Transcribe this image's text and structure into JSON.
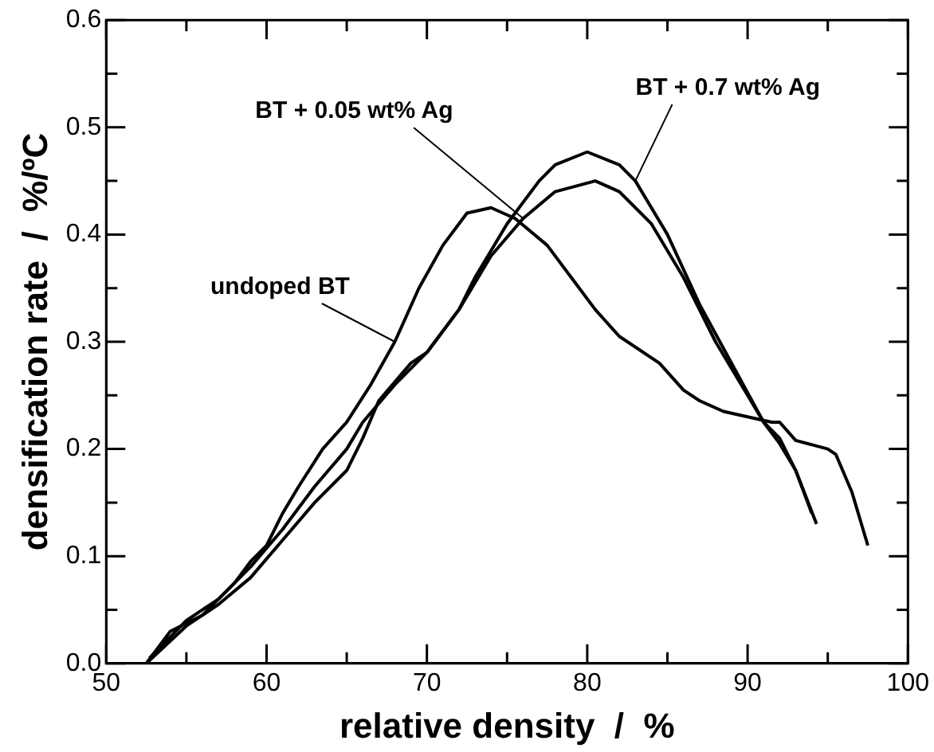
{
  "chart_data": {
    "type": "line",
    "xlabel": "relative density  /  %",
    "ylabel": "densification rate  /  %/ºC",
    "xlim": [
      50,
      100
    ],
    "ylim": [
      0,
      0.6
    ],
    "xticks": [
      50,
      {
        "value": 55,
        "label": null
      },
      60,
      {
        "value": 65,
        "label": null
      },
      70,
      {
        "value": 75,
        "label": null
      },
      80,
      {
        "value": 85,
        "label": null
      },
      90,
      {
        "value": 95,
        "label": null
      },
      100
    ],
    "yticks": [
      {
        "value": 0,
        "label": "0.0"
      },
      {
        "value": 0.05,
        "label": null
      },
      0.1,
      {
        "value": 0.15,
        "label": null
      },
      0.2,
      {
        "value": 0.25,
        "label": null
      },
      0.3,
      {
        "value": 0.35,
        "label": null
      },
      0.4,
      {
        "value": 0.45,
        "label": null
      },
      0.5,
      {
        "value": 0.55,
        "label": null
      },
      0.6
    ],
    "grid": false,
    "legend": false,
    "marker": "none",
    "line_style": "solid",
    "series": [
      {
        "name": "undoped BT",
        "color": "#000000",
        "x": [
          52.5,
          54,
          56,
          58,
          59,
          60,
          61,
          62,
          63.5,
          65,
          66.5,
          68,
          69.5,
          71,
          72.5,
          74,
          75.5,
          77.5,
          79,
          80.5,
          82,
          84.5,
          86,
          87,
          88.5,
          90,
          91.5,
          92,
          93,
          95,
          95.5,
          96.5,
          97.5
        ],
        "values": [
          0,
          0.03,
          0.045,
          0.075,
          0.095,
          0.11,
          0.14,
          0.165,
          0.2,
          0.225,
          0.26,
          0.3,
          0.35,
          0.39,
          0.42,
          0.425,
          0.415,
          0.39,
          0.36,
          0.33,
          0.305,
          0.28,
          0.255,
          0.245,
          0.235,
          0.23,
          0.225,
          0.225,
          0.208,
          0.2,
          0.195,
          0.16,
          0.11
        ]
      },
      {
        "name": "BT + 0.05 wt% Ag",
        "color": "#000000",
        "x": [
          52.7,
          55,
          57,
          59,
          61,
          63,
          65,
          66,
          68,
          70,
          72,
          74,
          76,
          78,
          80.5,
          82,
          84,
          86,
          88,
          90,
          91,
          92,
          93,
          94
        ],
        "values": [
          0.005,
          0.04,
          0.06,
          0.09,
          0.125,
          0.165,
          0.2,
          0.225,
          0.26,
          0.29,
          0.33,
          0.38,
          0.415,
          0.44,
          0.45,
          0.44,
          0.41,
          0.36,
          0.3,
          0.25,
          0.225,
          0.205,
          0.18,
          0.14
        ]
      },
      {
        "name": "BT + 0.7 wt% Ag",
        "color": "#000000",
        "x": [
          52.5,
          55,
          57,
          59,
          61,
          63,
          65,
          66,
          67,
          69,
          70,
          71,
          72,
          73,
          75,
          77,
          78,
          80,
          82,
          83,
          85,
          87,
          89,
          91,
          92,
          93,
          94.3
        ],
        "values": [
          0,
          0.035,
          0.055,
          0.08,
          0.115,
          0.15,
          0.18,
          0.21,
          0.245,
          0.28,
          0.29,
          0.31,
          0.33,
          0.36,
          0.41,
          0.45,
          0.465,
          0.477,
          0.465,
          0.45,
          0.4,
          0.335,
          0.28,
          0.225,
          0.21,
          0.18,
          0.13
        ]
      }
    ]
  }
}
